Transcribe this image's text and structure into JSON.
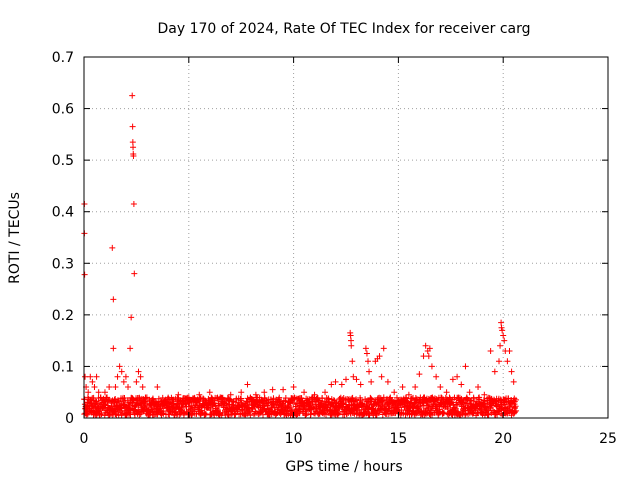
{
  "chart_data": {
    "type": "scatter",
    "title": "Day 170 of 2024, Rate Of TEC Index for receiver carg",
    "xlabel": "GPS time / hours",
    "ylabel": "ROTI / TECUs",
    "xlim": [
      0,
      25
    ],
    "ylim": [
      0,
      0.7
    ],
    "xticks": [
      0,
      5,
      10,
      15,
      20,
      25
    ],
    "yticks": [
      0,
      0.1,
      0.2,
      0.3,
      0.4,
      0.5,
      0.6,
      0.7
    ],
    "xtick_labels": [
      "0",
      "5",
      "10",
      "15",
      "20",
      "25"
    ],
    "ytick_labels": [
      "0",
      "0.1",
      "0.2",
      "0.3",
      "0.4",
      "0.5",
      "0.6",
      "0.7"
    ],
    "grid": true,
    "marker": "+",
    "series": [
      {
        "name": "ROTI",
        "color": "#ff0000",
        "points": [
          [
            0.02,
            0.415
          ],
          [
            0.02,
            0.358
          ],
          [
            0.03,
            0.278
          ],
          [
            0.05,
            0.08
          ],
          [
            0.1,
            0.06
          ],
          [
            0.15,
            0.03
          ],
          [
            0.2,
            0.05
          ],
          [
            0.3,
            0.08
          ],
          [
            0.4,
            0.07
          ],
          [
            0.5,
            0.06
          ],
          [
            0.6,
            0.08
          ],
          [
            0.7,
            0.05
          ],
          [
            0.8,
            0.04
          ],
          [
            0.9,
            0.03
          ],
          [
            1.0,
            0.05
          ],
          [
            1.1,
            0.04
          ],
          [
            1.2,
            0.06
          ],
          [
            1.35,
            0.33
          ],
          [
            1.4,
            0.23
          ],
          [
            1.4,
            0.135
          ],
          [
            1.5,
            0.06
          ],
          [
            1.6,
            0.08
          ],
          [
            1.7,
            0.1
          ],
          [
            1.8,
            0.09
          ],
          [
            1.9,
            0.07
          ],
          [
            2.0,
            0.08
          ],
          [
            2.1,
            0.06
          ],
          [
            2.2,
            0.135
          ],
          [
            2.25,
            0.195
          ],
          [
            2.3,
            0.625
          ],
          [
            2.32,
            0.565
          ],
          [
            2.33,
            0.535
          ],
          [
            2.34,
            0.525
          ],
          [
            2.35,
            0.512
          ],
          [
            2.36,
            0.508
          ],
          [
            2.38,
            0.415
          ],
          [
            2.4,
            0.28
          ],
          [
            2.5,
            0.07
          ],
          [
            2.6,
            0.09
          ],
          [
            2.7,
            0.08
          ],
          [
            2.8,
            0.06
          ],
          [
            3.0,
            0.04
          ],
          [
            3.3,
            0.035
          ],
          [
            3.5,
            0.06
          ],
          [
            3.8,
            0.03
          ],
          [
            4.2,
            0.035
          ],
          [
            4.5,
            0.045
          ],
          [
            5.0,
            0.04
          ],
          [
            5.5,
            0.045
          ],
          [
            6.0,
            0.05
          ],
          [
            6.5,
            0.04
          ],
          [
            7.0,
            0.045
          ],
          [
            7.5,
            0.05
          ],
          [
            7.8,
            0.065
          ],
          [
            8.2,
            0.045
          ],
          [
            8.6,
            0.05
          ],
          [
            9.0,
            0.055
          ],
          [
            9.5,
            0.055
          ],
          [
            10.0,
            0.06
          ],
          [
            10.5,
            0.05
          ],
          [
            11.0,
            0.045
          ],
          [
            11.5,
            0.05
          ],
          [
            11.8,
            0.065
          ],
          [
            12.0,
            0.07
          ],
          [
            12.3,
            0.065
          ],
          [
            12.5,
            0.075
          ],
          [
            12.7,
            0.165
          ],
          [
            12.72,
            0.16
          ],
          [
            12.74,
            0.15
          ],
          [
            12.75,
            0.14
          ],
          [
            12.8,
            0.11
          ],
          [
            12.85,
            0.08
          ],
          [
            13.0,
            0.075
          ],
          [
            13.2,
            0.065
          ],
          [
            13.45,
            0.135
          ],
          [
            13.5,
            0.125
          ],
          [
            13.55,
            0.11
          ],
          [
            13.6,
            0.09
          ],
          [
            13.7,
            0.07
          ],
          [
            13.9,
            0.11
          ],
          [
            14.0,
            0.115
          ],
          [
            14.1,
            0.12
          ],
          [
            14.2,
            0.08
          ],
          [
            14.3,
            0.135
          ],
          [
            14.5,
            0.07
          ],
          [
            14.8,
            0.05
          ],
          [
            15.2,
            0.06
          ],
          [
            15.5,
            0.045
          ],
          [
            15.8,
            0.06
          ],
          [
            16.0,
            0.085
          ],
          [
            16.2,
            0.12
          ],
          [
            16.3,
            0.14
          ],
          [
            16.4,
            0.13
          ],
          [
            16.45,
            0.12
          ],
          [
            16.5,
            0.135
          ],
          [
            16.6,
            0.1
          ],
          [
            16.8,
            0.08
          ],
          [
            17.0,
            0.06
          ],
          [
            17.3,
            0.05
          ],
          [
            17.6,
            0.075
          ],
          [
            17.8,
            0.08
          ],
          [
            18.0,
            0.065
          ],
          [
            18.2,
            0.1
          ],
          [
            18.4,
            0.05
          ],
          [
            18.8,
            0.06
          ],
          [
            19.1,
            0.045
          ],
          [
            19.4,
            0.13
          ],
          [
            19.6,
            0.09
          ],
          [
            19.8,
            0.11
          ],
          [
            19.85,
            0.14
          ],
          [
            19.9,
            0.185
          ],
          [
            19.92,
            0.175
          ],
          [
            19.95,
            0.17
          ],
          [
            20.0,
            0.16
          ],
          [
            20.05,
            0.15
          ],
          [
            20.1,
            0.13
          ],
          [
            20.2,
            0.11
          ],
          [
            20.3,
            0.13
          ],
          [
            20.4,
            0.09
          ],
          [
            20.5,
            0.07
          ],
          [
            20.55,
            0.02
          ]
        ]
      }
    ]
  }
}
